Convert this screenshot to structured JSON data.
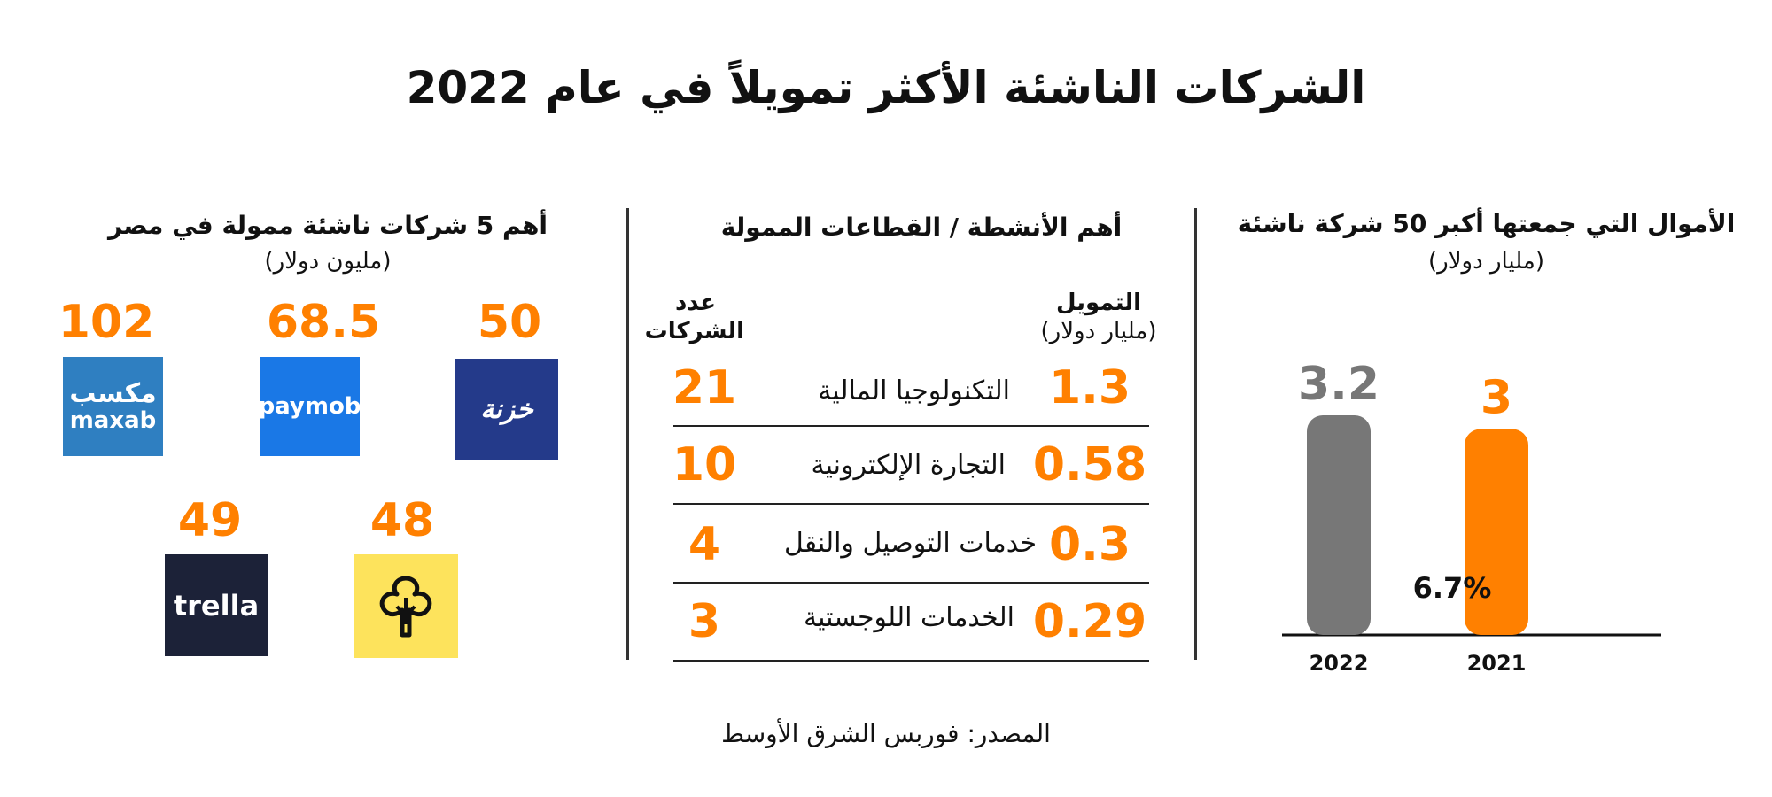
{
  "title": "الشركات الناشئة الأكثر تمويلاً في عام  2022",
  "source": "المصدر: فوربس الشرق الأوسط",
  "colors": {
    "accent": "#ff8000",
    "gray_bar": "#777777",
    "text": "#111111"
  },
  "funds_section": {
    "title": "الأموال التي جمعتها أكبر 50 شركة ناشئة",
    "subtitle": "(مليار دولار)",
    "growth_label": "6.7%"
  },
  "sectors_section": {
    "title": "أهم الأنشطة / القطاعات الممولة",
    "funding_header": "التمويل",
    "funding_unit": "(مليار دولار)",
    "count_header_line1": "عدد",
    "count_header_line2": "الشركات",
    "rows": [
      {
        "funding": "1.3",
        "label": "التكنولوجيا المالية",
        "count": "21"
      },
      {
        "funding": "0.58",
        "label": "التجارة الإلكترونية",
        "count": "10"
      },
      {
        "funding": "0.3",
        "label": "خدمات التوصيل والنقل",
        "count": "4"
      },
      {
        "funding": "0.29",
        "label": "الخدمات اللوجستية",
        "count": "3"
      }
    ]
  },
  "companies_section": {
    "title": "أهم 5 شركات ناشئة ممولة في مصر",
    "subtitle": "(مليون دولار)",
    "companies": [
      {
        "value": "102",
        "logo_line1": "مكسب",
        "logo_line2": "maxab",
        "logo_color": "#2f7fc1"
      },
      {
        "value": "68.5",
        "logo_text": "paymob",
        "logo_color": "#1a78e6"
      },
      {
        "value": "50",
        "logo_text": "خزنة",
        "logo_color": "#243a8a"
      },
      {
        "value": "49",
        "logo_text": "trella",
        "logo_color": "#1c2238"
      },
      {
        "value": "48",
        "logo_icon": "tree-logo-icon",
        "logo_color": "#fde35c"
      }
    ]
  },
  "chart_data": {
    "type": "bar",
    "title": "الأموال التي جمعتها أكبر 50 شركة ناشئة",
    "ylabel": "(مليار دولار)",
    "categories": [
      "2022",
      "2021"
    ],
    "values": [
      3.2,
      3
    ],
    "value_labels": [
      "3.2",
      "3"
    ],
    "bar_colors": [
      "#777777",
      "#ff8000"
    ],
    "ylim": [
      0,
      3.5
    ],
    "grid": false,
    "annotation": "6.7%"
  }
}
